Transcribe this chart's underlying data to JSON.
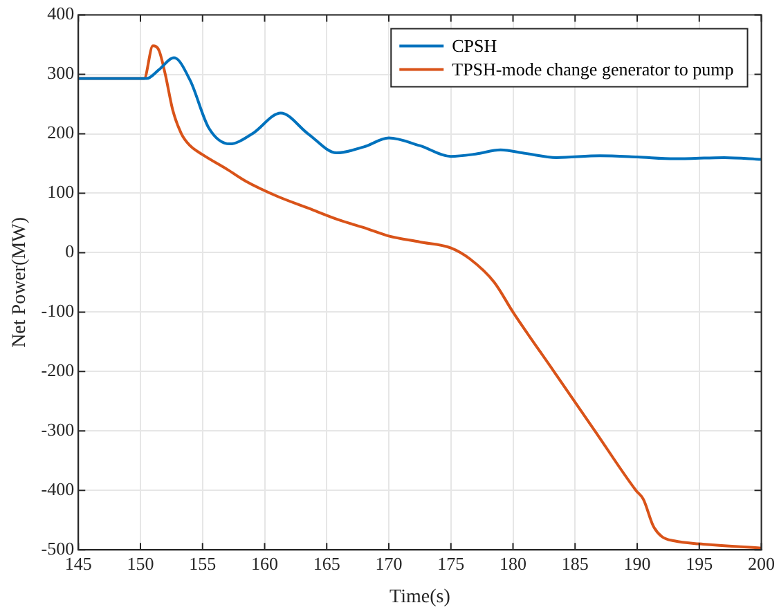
{
  "chart_data": {
    "type": "line",
    "xlabel": "Time(s)",
    "ylabel": "Net Power(MW)",
    "xlim": [
      145,
      200
    ],
    "xticks": [
      145,
      150,
      155,
      160,
      165,
      170,
      175,
      180,
      185,
      190,
      195,
      200
    ],
    "ylim": [
      -500,
      400
    ],
    "yticks": [
      -500,
      -400,
      -300,
      -200,
      -100,
      0,
      100,
      200,
      300,
      400
    ],
    "grid": true,
    "legend": "top right",
    "marker": "none",
    "line_style": "solid",
    "x": [
      145,
      150,
      150.5,
      151.5,
      152.7,
      154,
      155.5,
      157.2,
      159,
      161.3,
      163.5,
      165.8,
      168,
      170,
      172.5,
      175,
      177,
      179,
      181,
      183.5,
      187,
      190,
      193,
      197,
      200
    ],
    "series": [
      {
        "name": "CPSH",
        "color": "#0072bd",
        "values": [
          293,
          293,
          293,
          308,
          328,
          290,
          210,
          183,
          200,
          235,
          200,
          168,
          178,
          193,
          180,
          162,
          166,
          173,
          167,
          160,
          163,
          161,
          158,
          160,
          157
        ]
      },
      {
        "name": "TPSH-mode change generator to pump",
        "color": "#d95319",
        "x": [
          145,
          150,
          150.3,
          151,
          151.5,
          152,
          152.6,
          153.3,
          154,
          155,
          157,
          158.5,
          161,
          163.5,
          166,
          168.3,
          170,
          172.5,
          175,
          176.5,
          178.5,
          180,
          183.3,
          186.6,
          189.9,
          190.5,
          191.3,
          192,
          193,
          195,
          200
        ],
        "values": [
          293,
          293,
          293,
          348,
          340,
          300,
          240,
          200,
          180,
          165,
          140,
          120,
          95,
          75,
          55,
          40,
          28,
          18,
          8,
          -10,
          -50,
          -100,
          -200,
          -300,
          -400,
          -415,
          -460,
          -478,
          -485,
          -490,
          -497
        ]
      }
    ]
  }
}
